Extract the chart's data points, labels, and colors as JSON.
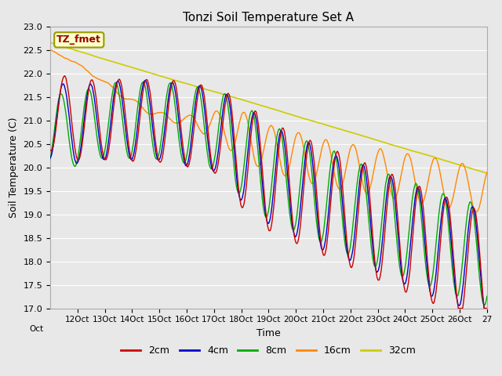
{
  "title": "Tonzi Soil Temperature Set A",
  "xlabel": "Time",
  "ylabel": "Soil Temperature (C)",
  "ylim": [
    17.0,
    23.0
  ],
  "yticks": [
    17.0,
    17.5,
    18.0,
    18.5,
    19.0,
    19.5,
    20.0,
    20.5,
    21.0,
    21.5,
    22.0,
    22.5,
    23.0
  ],
  "colors": {
    "2cm": "#cc0000",
    "4cm": "#0000cc",
    "8cm": "#00aa00",
    "16cm": "#ff8800",
    "32cm": "#cccc00"
  },
  "legend_labels": [
    "2cm",
    "4cm",
    "8cm",
    "16cm",
    "32cm"
  ],
  "plot_bg_color": "#e8e8e8",
  "fig_bg_color": "#e8e8e8",
  "annotation_text": "TZ_fmet",
  "annotation_bg": "#ffffcc",
  "annotation_border": "#999900",
  "annotation_text_color": "#990000",
  "title_fontsize": 11,
  "axis_label_fontsize": 9,
  "tick_fontsize": 8,
  "legend_fontsize": 9,
  "n_days": 16
}
